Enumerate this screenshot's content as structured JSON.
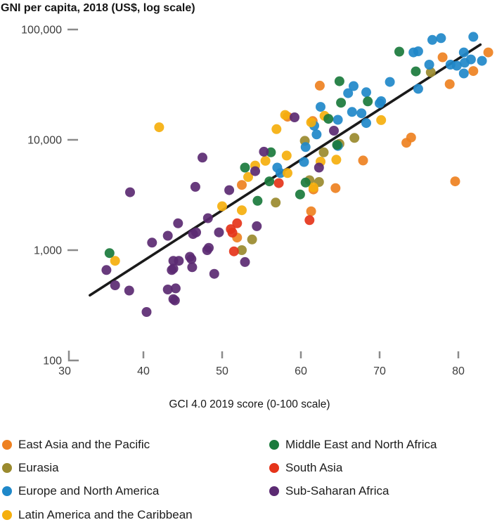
{
  "title": "GNI per capita, 2018 (US$, log scale)",
  "x_axis": {
    "label": "GCI 4.0 2019 score (0-100 scale)",
    "ticks": [
      30,
      40,
      50,
      60,
      70,
      80
    ],
    "range": [
      30,
      85
    ]
  },
  "y_axis": {
    "scale": "log",
    "range": [
      100,
      100000
    ],
    "ticks": [
      {
        "value": 100000,
        "label": "100,000"
      },
      {
        "value": 10000,
        "label": "10,000"
      },
      {
        "value": 1000,
        "label": "1,000"
      },
      {
        "value": 100,
        "label": "100"
      }
    ]
  },
  "colors": {
    "east_asia_pacific": "#EE8121",
    "eurasia": "#9A8A2E",
    "europe_north_america": "#1F88C9",
    "latin_america_caribbean": "#F5AF0D",
    "middle_east_north_africa": "#1A7A3C",
    "south_asia": "#E5341A",
    "sub_saharan_africa": "#5B2A72",
    "trendline": "#1a1a1a",
    "axis": "#8b8b8b"
  },
  "legend": {
    "left": [
      {
        "region": "east_asia_pacific",
        "label": "East Asia and the Pacific"
      },
      {
        "region": "eurasia",
        "label": "Eurasia"
      },
      {
        "region": "europe_north_america",
        "label": "Europe and North America"
      },
      {
        "region": "latin_america_caribbean",
        "label": "Latin America and the Caribbean"
      }
    ],
    "right": [
      {
        "region": "middle_east_north_africa",
        "label": "Middle East and North Africa"
      },
      {
        "region": "south_asia",
        "label": "South Asia"
      },
      {
        "region": "sub_saharan_africa",
        "label": "Sub-Saharan Africa"
      }
    ]
  },
  "chart_data": {
    "type": "scatter",
    "title": "GNI per capita, 2018 (US$, log scale)",
    "xlabel": "GCI 4.0 2019 score (0-100 scale)",
    "ylabel": "GNI per capita, 2018 (US$, log scale)",
    "xlim": [
      30,
      85
    ],
    "ylim": [
      100,
      100000
    ],
    "y_scale": "log",
    "grid": false,
    "legend_position": "bottom",
    "point_radius_px": 7,
    "trendline": {
      "x": [
        33.2,
        82.8
      ],
      "y": [
        390,
        73000
      ]
    },
    "series": [
      {
        "name": "East Asia and the Pacific",
        "region": "east_asia_pacific",
        "color": "#EE8121",
        "points": [
          [
            83.8,
            62000
          ],
          [
            81.9,
            42000
          ],
          [
            78.9,
            32000
          ],
          [
            78.0,
            56000
          ],
          [
            74.0,
            10500
          ],
          [
            73.4,
            9400
          ],
          [
            79.6,
            4200
          ],
          [
            67.9,
            6500
          ],
          [
            62.4,
            31000
          ],
          [
            61.5,
            14800
          ],
          [
            58.3,
            16200
          ],
          [
            61.6,
            3550
          ],
          [
            64.4,
            3650
          ],
          [
            61.3,
            2250
          ],
          [
            52.5,
            3900
          ],
          [
            51.9,
            1300
          ]
        ]
      },
      {
        "name": "Eurasia",
        "region": "eurasia",
        "color": "#9A8A2E",
        "points": [
          [
            76.5,
            41000
          ],
          [
            66.8,
            10400
          ],
          [
            64.9,
            9200
          ],
          [
            62.9,
            7700
          ],
          [
            60.5,
            9800
          ],
          [
            61.1,
            4300
          ],
          [
            62.3,
            4150
          ],
          [
            56.8,
            2700
          ],
          [
            53.8,
            1250
          ],
          [
            52.5,
            1000
          ]
        ]
      },
      {
        "name": "Europe and North America",
        "region": "europe_north_america",
        "color": "#1F88C9",
        "points": [
          [
            76.7,
            80500
          ],
          [
            77.8,
            83500
          ],
          [
            81.9,
            85800
          ],
          [
            74.3,
            62000
          ],
          [
            74.9,
            63500
          ],
          [
            80.7,
            62000
          ],
          [
            83.0,
            52000
          ],
          [
            76.3,
            48000
          ],
          [
            79.0,
            48000
          ],
          [
            79.8,
            47000
          ],
          [
            80.8,
            50000
          ],
          [
            81.6,
            53500
          ],
          [
            80.7,
            40000
          ],
          [
            71.3,
            33500
          ],
          [
            74.9,
            29000
          ],
          [
            70.2,
            22400
          ],
          [
            70.0,
            21400
          ],
          [
            66.0,
            26500
          ],
          [
            68.3,
            27000
          ],
          [
            66.7,
            30700
          ],
          [
            62.5,
            19900
          ],
          [
            66.5,
            17900
          ],
          [
            67.7,
            17400
          ],
          [
            68.3,
            14200
          ],
          [
            64.7,
            15200
          ],
          [
            61.7,
            13400
          ],
          [
            62.0,
            11200
          ],
          [
            64.7,
            8800
          ],
          [
            60.6,
            8600
          ],
          [
            60.4,
            6300
          ],
          [
            57.0,
            5600
          ],
          [
            57.4,
            5000
          ]
        ]
      },
      {
        "name": "Latin America and the Caribbean",
        "region": "latin_america_caribbean",
        "color": "#F5AF0D",
        "points": [
          [
            42.0,
            13000
          ],
          [
            70.2,
            15100
          ],
          [
            63.0,
            16500
          ],
          [
            61.3,
            14400
          ],
          [
            58.0,
            16800
          ],
          [
            56.9,
            12500
          ],
          [
            58.2,
            7200
          ],
          [
            64.5,
            6600
          ],
          [
            62.5,
            6350
          ],
          [
            55.5,
            6450
          ],
          [
            54.2,
            5850
          ],
          [
            58.3,
            5000
          ],
          [
            53.3,
            4600
          ],
          [
            61.6,
            3700
          ],
          [
            50.0,
            2500
          ],
          [
            52.5,
            2300
          ],
          [
            36.4,
            800
          ]
        ]
      },
      {
        "name": "Middle East and North Africa",
        "region": "middle_east_north_africa",
        "color": "#1A7A3C",
        "points": [
          [
            72.5,
            63000
          ],
          [
            74.6,
            41700
          ],
          [
            64.9,
            34000
          ],
          [
            65.1,
            21700
          ],
          [
            68.5,
            22300
          ],
          [
            63.5,
            15500
          ],
          [
            64.6,
            9000
          ],
          [
            56.2,
            7700
          ],
          [
            52.9,
            5600
          ],
          [
            56.0,
            4200
          ],
          [
            60.6,
            4100
          ],
          [
            59.9,
            3200
          ],
          [
            54.5,
            2800
          ],
          [
            35.7,
            940
          ]
        ]
      },
      {
        "name": "South Asia",
        "region": "south_asia",
        "color": "#E5341A",
        "points": [
          [
            57.2,
            4050
          ],
          [
            61.1,
            1870
          ],
          [
            51.9,
            1750
          ],
          [
            51.1,
            1550
          ],
          [
            51.3,
            1440
          ],
          [
            51.5,
            975
          ]
        ]
      },
      {
        "name": "Sub-Saharan Africa",
        "region": "sub_saharan_africa",
        "color": "#5B2A72",
        "points": [
          [
            47.5,
            6900
          ],
          [
            46.6,
            3750
          ],
          [
            38.3,
            3350
          ],
          [
            50.9,
            3500
          ],
          [
            55.3,
            7800
          ],
          [
            59.2,
            16000
          ],
          [
            64.2,
            12100
          ],
          [
            62.3,
            5600
          ],
          [
            54.2,
            5200
          ],
          [
            48.2,
            1950
          ],
          [
            44.4,
            1750
          ],
          [
            46.7,
            1450
          ],
          [
            49.6,
            1450
          ],
          [
            54.4,
            1650
          ],
          [
            52.9,
            780
          ],
          [
            48.1,
            1000
          ],
          [
            45.9,
            870
          ],
          [
            46.2,
            700
          ],
          [
            44.5,
            800
          ],
          [
            43.8,
            680
          ],
          [
            49.0,
            610
          ],
          [
            44.1,
            450
          ],
          [
            44.0,
            350
          ],
          [
            35.3,
            660
          ],
          [
            36.4,
            480
          ],
          [
            38.2,
            430
          ],
          [
            41.1,
            1170
          ],
          [
            43.1,
            1350
          ],
          [
            46.3,
            1400
          ],
          [
            48.3,
            1050
          ],
          [
            43.8,
            800
          ],
          [
            46.1,
            830
          ],
          [
            43.6,
            660
          ],
          [
            43.1,
            440
          ],
          [
            43.8,
            360
          ],
          [
            40.4,
            275
          ]
        ]
      }
    ]
  }
}
